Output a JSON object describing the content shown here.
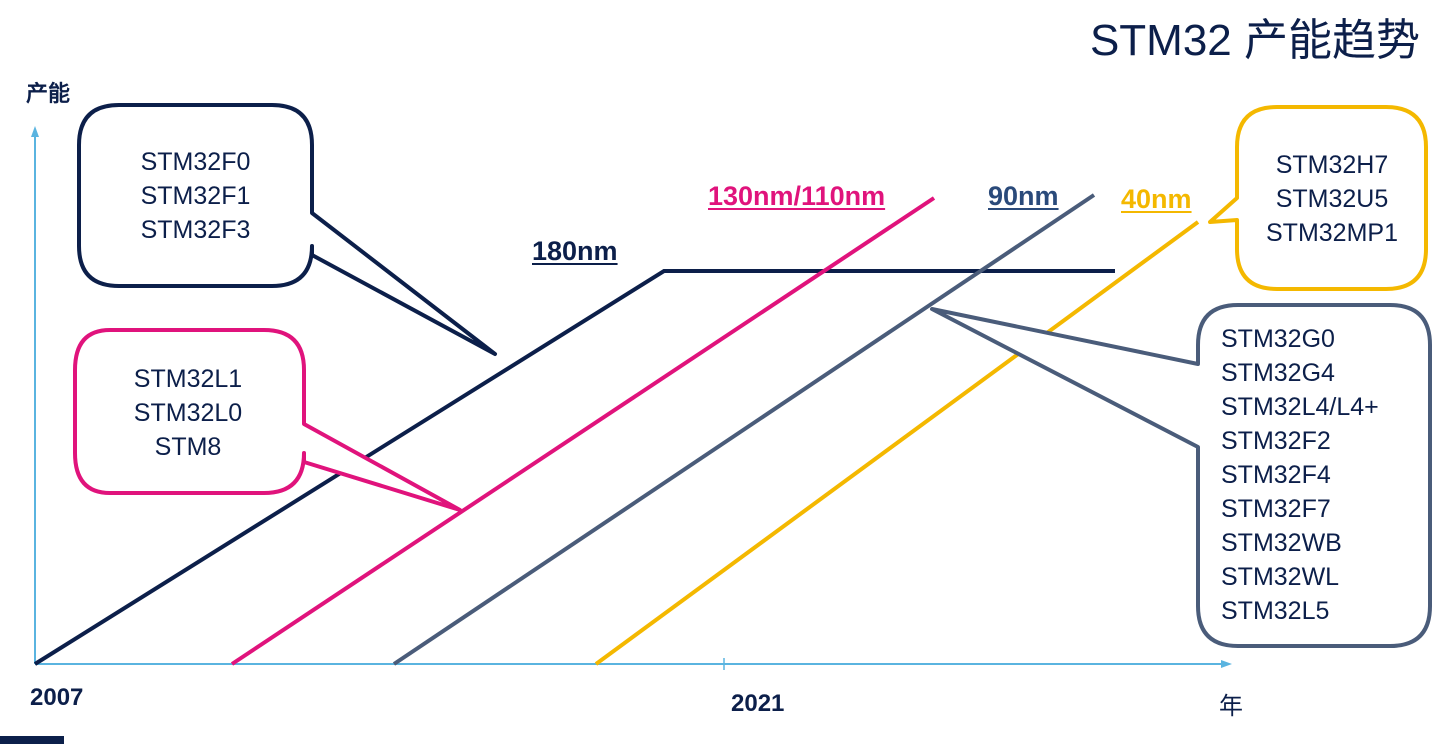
{
  "title": "STM32 产能趋势",
  "axes": {
    "y_label": "产能",
    "x_label": "年",
    "x_start": "2007",
    "x_mid": "2021"
  },
  "colors": {
    "dark_navy": "#0c1f4a",
    "magenta": "#e0137c",
    "slate": "#4a5c7a",
    "amber": "#f4b800",
    "axis": "#5ab4e0"
  },
  "nodes": {
    "n180": "180nm",
    "n130": "130nm/110nm",
    "n90": "90nm",
    "n40": "40nm"
  },
  "callouts": {
    "f_series": [
      "STM32F0",
      "STM32F1",
      "STM32F3"
    ],
    "l_series": [
      "STM32L1",
      "STM32L0",
      "STM32L0",
      "STM8"
    ],
    "h_series": [
      "STM32H7",
      "STM32U5",
      "STM32MP1"
    ],
    "g_series": [
      "STM32G0",
      "STM32G4",
      "STM32L4/L4+",
      "STM32F2",
      "STM32F4",
      "STM32F7",
      "STM32WB",
      "STM32WL",
      "STM32L5"
    ]
  }
}
